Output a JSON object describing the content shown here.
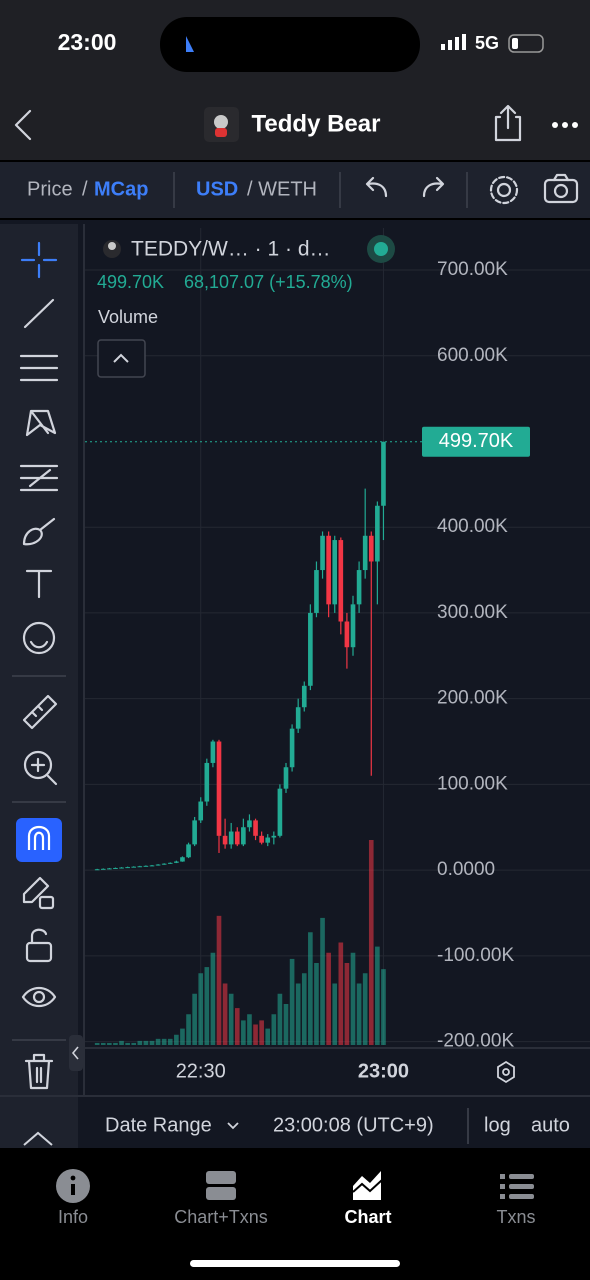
{
  "status_bar": {
    "time": "23:00",
    "network": "5G"
  },
  "nav": {
    "title": "Teddy Bear"
  },
  "toolbar": {
    "price": "Price",
    "price_sep": "/",
    "mcap": "MCap",
    "usd": "USD",
    "weth": "/ WETH"
  },
  "chart_data": {
    "type": "candlestick",
    "symbol": "TEDDY/W… · 1 · d…",
    "legend_price": "499.70K",
    "legend_change": "68,107.07 (+15.78%)",
    "volume_label": "Volume",
    "x": [
      "22:13",
      "22:14",
      "22:15",
      "22:16",
      "22:17",
      "22:18",
      "22:19",
      "22:20",
      "22:21",
      "22:22",
      "22:23",
      "22:24",
      "22:25",
      "22:26",
      "22:27",
      "22:28",
      "22:29",
      "22:30",
      "22:31",
      "22:32",
      "22:33",
      "22:34",
      "22:35",
      "22:36",
      "22:37",
      "22:38",
      "22:39",
      "22:40",
      "22:41",
      "22:42",
      "22:43",
      "22:44",
      "22:45",
      "22:46",
      "22:47",
      "22:48",
      "22:49",
      "22:50",
      "22:51",
      "22:52",
      "22:53",
      "22:54",
      "22:55",
      "22:56",
      "22:57",
      "22:58",
      "22:59",
      "23:00"
    ],
    "open": [
      0.5,
      1,
      1.5,
      2,
      2.5,
      3,
      3.5,
      4,
      4.5,
      5,
      5.5,
      6.5,
      7.5,
      8.5,
      10,
      15,
      30,
      58,
      80,
      125,
      150,
      40,
      30,
      45,
      30,
      50,
      58,
      40,
      32,
      38,
      40,
      95,
      120,
      165,
      190,
      215,
      300,
      350,
      390,
      310,
      385,
      290,
      260,
      310,
      350,
      390,
      360,
      425
    ],
    "high": [
      1.5,
      2,
      2.5,
      3,
      3.5,
      4,
      4.5,
      5,
      5.5,
      6,
      7,
      8,
      9,
      11,
      16,
      32,
      62,
      85,
      130,
      152,
      152,
      60,
      55,
      50,
      60,
      65,
      60,
      45,
      42,
      45,
      100,
      125,
      170,
      200,
      220,
      310,
      360,
      395,
      395,
      390,
      388,
      300,
      320,
      360,
      445,
      395,
      430,
      499.7
    ],
    "low": [
      0.2,
      0.7,
      1.2,
      1.7,
      2.2,
      2.7,
      3.2,
      3.7,
      4.2,
      4.7,
      5.2,
      6.2,
      7.2,
      8.2,
      9.7,
      14,
      28,
      55,
      75,
      120,
      20,
      25,
      25,
      28,
      28,
      45,
      35,
      30,
      28,
      30,
      38,
      90,
      115,
      160,
      185,
      210,
      295,
      340,
      295,
      300,
      275,
      235,
      250,
      300,
      340,
      110,
      310,
      385
    ],
    "close": [
      1,
      1.5,
      2,
      2.5,
      3,
      3.5,
      4,
      4.5,
      5,
      5.5,
      6.5,
      7.5,
      8.5,
      10,
      15,
      30,
      58,
      80,
      125,
      150,
      40,
      30,
      45,
      30,
      50,
      58,
      40,
      32,
      38,
      40,
      95,
      120,
      165,
      190,
      215,
      300,
      350,
      390,
      310,
      385,
      290,
      260,
      310,
      350,
      390,
      360,
      425,
      499.7
    ],
    "volume": [
      1,
      1,
      1,
      1,
      2,
      1,
      1,
      2,
      2,
      2,
      3,
      3,
      3,
      5,
      8,
      15,
      25,
      35,
      38,
      45,
      63,
      30,
      25,
      18,
      12,
      15,
      10,
      12,
      8,
      15,
      25,
      20,
      42,
      30,
      35,
      55,
      40,
      62,
      45,
      30,
      50,
      40,
      45,
      30,
      35,
      100,
      48,
      37
    ],
    "volume_ylim": [
      0,
      100
    ],
    "xlim": [
      "22:11",
      "23:06"
    ],
    "xticks": [
      "22:30",
      "23:00"
    ],
    "ylim": [
      -204,
      749
    ],
    "yticks": [
      {
        "value": 700,
        "label": "700.00K"
      },
      {
        "value": 600,
        "label": "600.00K"
      },
      {
        "value": 400,
        "label": "400.00K"
      },
      {
        "value": 300,
        "label": "300.00K"
      },
      {
        "value": 200,
        "label": "200.00K"
      },
      {
        "value": 100,
        "label": "100.00K"
      },
      {
        "value": 0,
        "label": "0.0000"
      },
      {
        "value": -100,
        "label": "-100.00K"
      },
      {
        "value": -200,
        "label": "-200.00K"
      }
    ],
    "last_price": {
      "value": 499.7,
      "label": "499.70K"
    },
    "up_color": "#22ab94",
    "down_color": "#f23645",
    "grid": true
  },
  "footer": {
    "date_range": "Date Range",
    "clock": "23:00:08 (UTC+9)",
    "log": "log",
    "auto": "auto"
  },
  "tabs": {
    "info": "Info",
    "chart_txns": "Chart+Txns",
    "chart": "Chart",
    "txns": "Txns"
  }
}
